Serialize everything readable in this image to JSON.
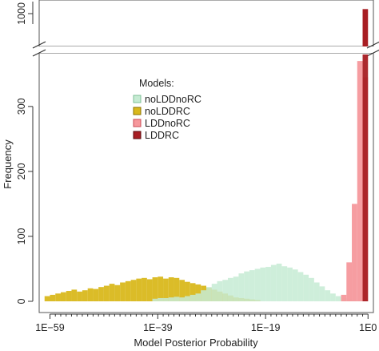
{
  "chart_data": {
    "type": "histogram",
    "xlabel": "Model Posterior Probability",
    "ylabel": "Frequency",
    "x_scale": "log10",
    "x_ticks": [
      {
        "exponent": -59,
        "label": "1E−59"
      },
      {
        "exponent": -39,
        "label": "1E−39"
      },
      {
        "exponent": -19,
        "label": "1E−19"
      },
      {
        "exponent": 0,
        "label": "1E0"
      }
    ],
    "y_ticks_lower": [
      0,
      100,
      200,
      300
    ],
    "y_ticks_upper": [
      1000
    ],
    "y_axis_break": true,
    "ylim_lower": [
      0,
      380
    ],
    "legend": {
      "title": "Models:",
      "position": "upper-left",
      "entries": [
        {
          "name": "noLDDnoRC",
          "fill": "#c6ebd3",
          "stroke": "#7cbf95"
        },
        {
          "name": "noLDDRC",
          "fill": "#d9b81c",
          "stroke": "#8a7200"
        },
        {
          "name": "LDDnoRC",
          "fill": "#f6989c",
          "stroke": "#c94a55"
        },
        {
          "name": "LDDRC",
          "fill": "#a81e23",
          "stroke": "#5a0a0c"
        }
      ]
    },
    "bin_width": 1,
    "series": [
      {
        "name": "noLDDRC",
        "color": "#d9b81c",
        "bin_start": [
          -60,
          -59,
          -58,
          -57,
          -56,
          -55,
          -54,
          -53,
          -52,
          -51,
          -50,
          -49,
          -48,
          -47,
          -46,
          -45,
          -44,
          -43,
          -42,
          -41,
          -40,
          -39,
          -38,
          -37,
          -36,
          -35,
          -34,
          -33,
          -32,
          -31,
          -30,
          -29,
          -28,
          -27,
          -26,
          -25,
          -24,
          -23,
          -22,
          -21
        ],
        "counts": [
          8,
          10,
          12,
          14,
          16,
          18,
          15,
          17,
          20,
          19,
          22,
          24,
          27,
          25,
          29,
          31,
          33,
          35,
          36,
          34,
          37,
          38,
          35,
          37,
          36,
          33,
          30,
          28,
          26,
          24,
          21,
          18,
          15,
          12,
          9,
          6,
          5,
          4,
          3,
          2
        ]
      },
      {
        "name": "noLDDnoRC",
        "color": "#c6ebd3",
        "bin_start": [
          -40,
          -39,
          -38,
          -37,
          -36,
          -35,
          -34,
          -33,
          -32,
          -31,
          -30,
          -29,
          -28,
          -27,
          -26,
          -25,
          -24,
          -23,
          -22,
          -21,
          -20,
          -19,
          -18,
          -17,
          -16,
          -15,
          -14,
          -13,
          -12,
          -11,
          -10,
          -9,
          -8,
          -7,
          -6,
          -5,
          -4,
          -3,
          -2
        ],
        "counts": [
          4,
          5,
          5,
          6,
          7,
          6,
          8,
          10,
          12,
          17,
          22,
          27,
          31,
          33,
          36,
          38,
          43,
          46,
          48,
          50,
          52,
          53,
          56,
          58,
          54,
          52,
          49,
          45,
          41,
          36,
          29,
          23,
          17,
          12,
          8,
          5,
          3,
          2,
          1
        ]
      },
      {
        "name": "LDDnoRC",
        "color": "#f6989c",
        "bin_start": [
          -5,
          -4,
          -3,
          -2,
          -1
        ],
        "counts": [
          10,
          60,
          150,
          370,
          345
        ]
      },
      {
        "name": "LDDRC",
        "color": "#a81e23",
        "bin_start": [
          -1
        ],
        "counts": [
          1000
        ]
      }
    ]
  }
}
